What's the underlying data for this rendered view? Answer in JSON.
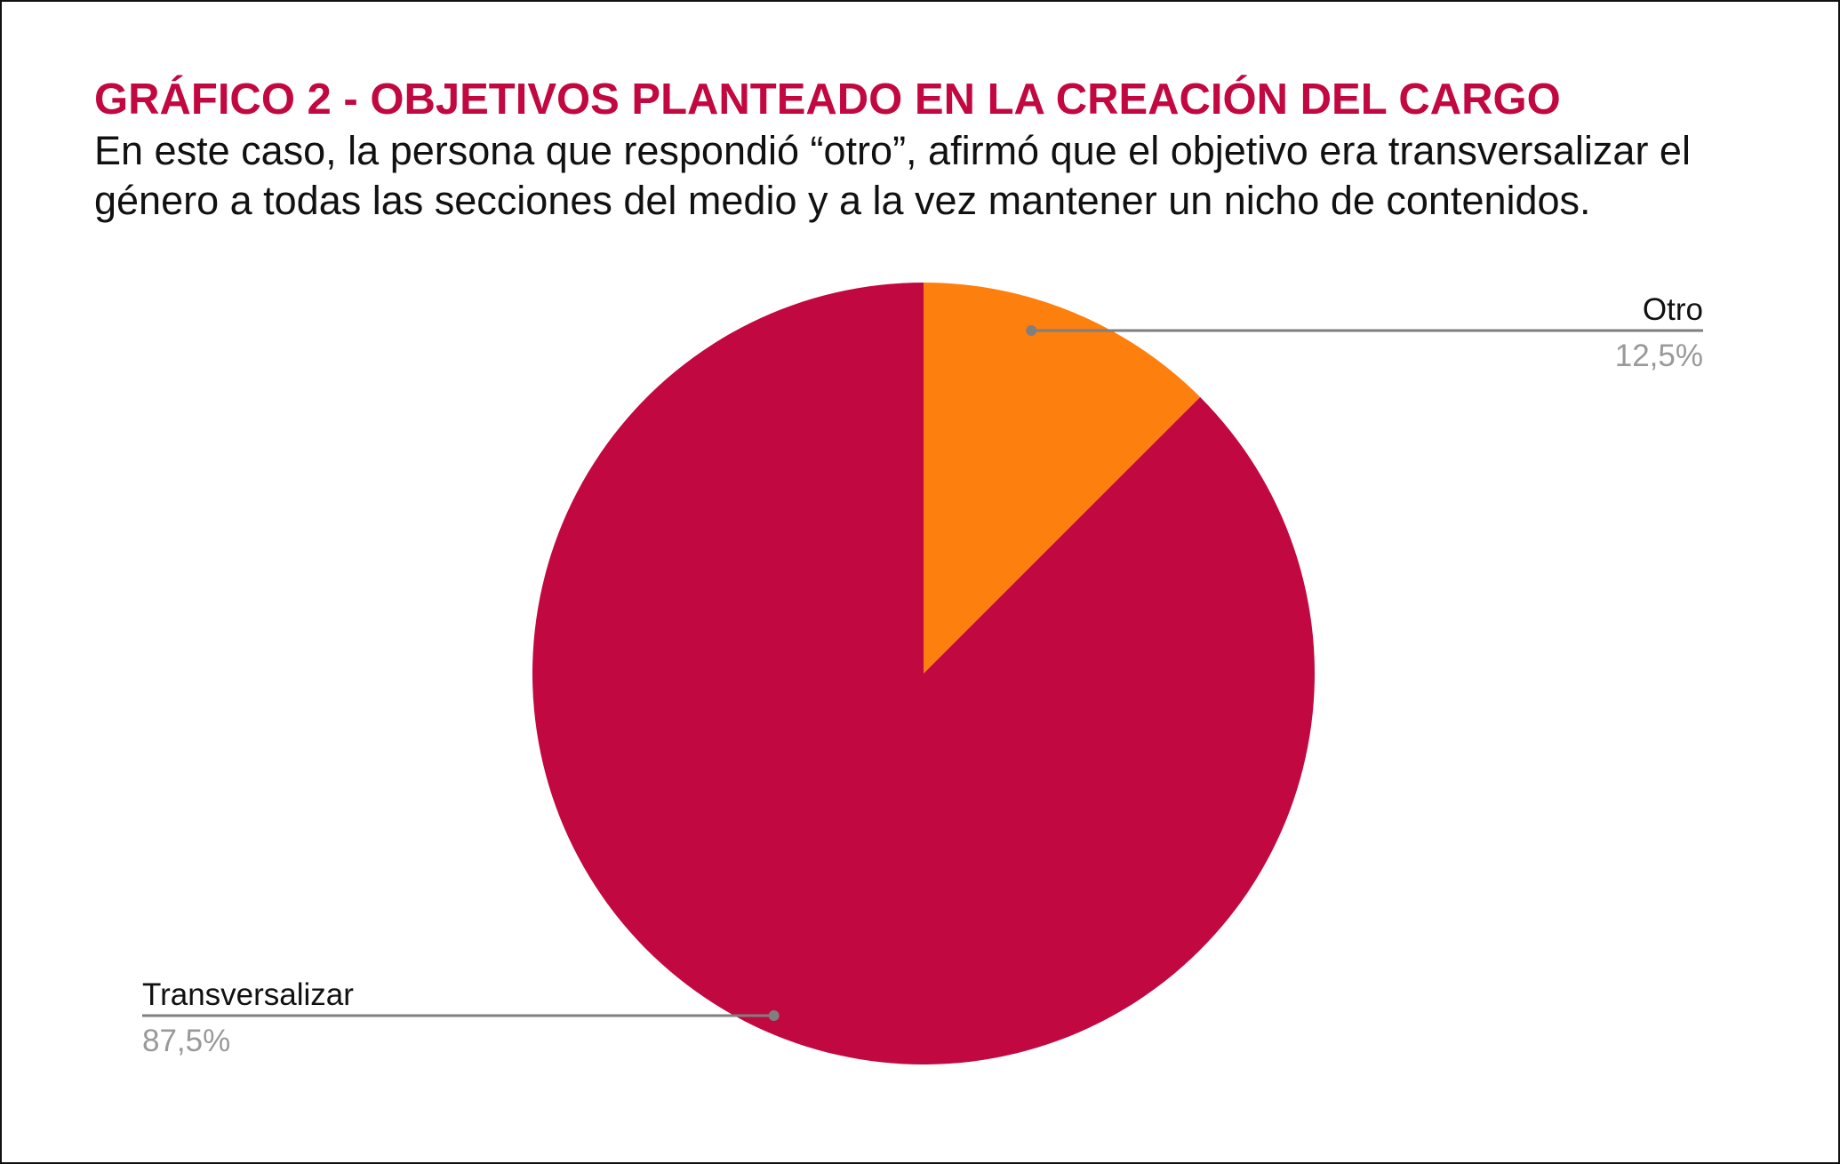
{
  "colors": {
    "title": "#c20841",
    "leader_line": "#7f7f7f",
    "label": "#111111",
    "percent_label": "#999999"
  },
  "title": "GRÁFICO 2 - OBJETIVOS PLANTEADO EN LA CREACIÓN DEL CARGO",
  "subtitle": "En este caso, la persona que respondió “otro”, afirmó que el objetivo era transversalizar el género a todas las secciones del medio y a la vez mantener un nicho de contenidos.",
  "chart_data": {
    "type": "pie",
    "title": "GRÁFICO 2 - OBJETIVOS PLANTEADO EN LA CREACIÓN DEL CARGO",
    "start_angle_deg": 0,
    "direction": "clockwise",
    "legend": "none",
    "slices": [
      {
        "label": "Otro",
        "value": 12.5,
        "display": "12,5%",
        "color": "#fd7f0e",
        "label_side": "right"
      },
      {
        "label": "Transversalizar",
        "value": 87.5,
        "display": "87,5%",
        "color": "#c20841",
        "label_side": "left"
      }
    ]
  }
}
